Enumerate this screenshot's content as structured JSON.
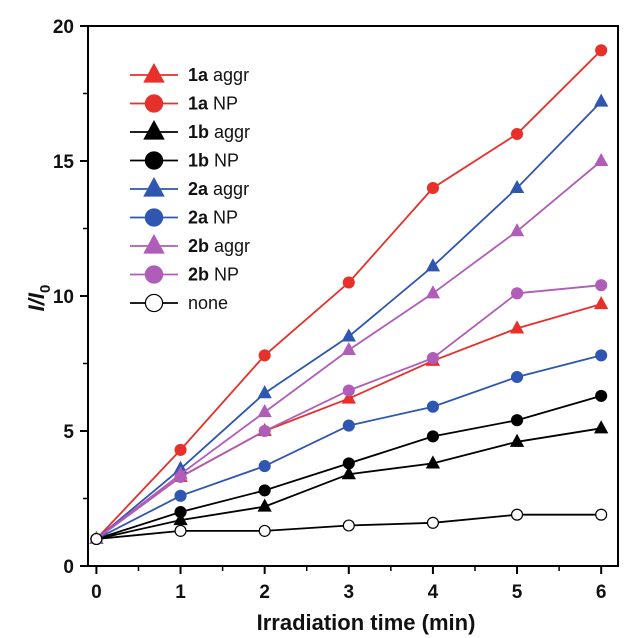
{
  "chart_data": {
    "type": "line",
    "xlabel": "Irradiation time (min)",
    "ylabel": {
      "main": "I/I",
      "sub": "0"
    },
    "x": [
      0,
      1,
      2,
      3,
      4,
      5,
      6
    ],
    "xlim": [
      -0.1,
      6.2
    ],
    "ylim": [
      0,
      20
    ],
    "xticks": [
      "0",
      "1",
      "2",
      "3",
      "4",
      "5",
      "6"
    ],
    "yticks": [
      "0",
      "5",
      "10",
      "15",
      "20"
    ],
    "grid": false,
    "legend_position": "top-left",
    "series": [
      {
        "name": "1a aggr",
        "compound": "1a",
        "form": "aggr",
        "color": "#e8302a",
        "marker": "triangle",
        "filled": true,
        "values": [
          1.0,
          3.3,
          5.0,
          6.2,
          7.6,
          8.8,
          9.7
        ]
      },
      {
        "name": "1a NP",
        "compound": "1a",
        "form": "NP",
        "color": "#e8302a",
        "marker": "circle",
        "filled": true,
        "values": [
          1.0,
          4.3,
          7.8,
          10.5,
          14.0,
          16.0,
          19.1
        ]
      },
      {
        "name": "1b aggr",
        "compound": "1b",
        "form": "aggr",
        "color": "#000000",
        "marker": "triangle",
        "filled": true,
        "values": [
          1.0,
          1.7,
          2.2,
          3.4,
          3.8,
          4.6,
          5.1
        ]
      },
      {
        "name": "1b NP",
        "compound": "1b",
        "form": "NP",
        "color": "#000000",
        "marker": "circle",
        "filled": true,
        "values": [
          1.0,
          2.0,
          2.8,
          3.8,
          4.8,
          5.4,
          6.3
        ]
      },
      {
        "name": "2a aggr",
        "compound": "2a",
        "form": "aggr",
        "color": "#2f56b0",
        "marker": "triangle",
        "filled": true,
        "values": [
          1.0,
          3.6,
          6.4,
          8.5,
          11.1,
          14.0,
          17.2
        ]
      },
      {
        "name": "2a NP",
        "compound": "2a",
        "form": "NP",
        "color": "#2f56b0",
        "marker": "circle",
        "filled": true,
        "values": [
          1.0,
          2.6,
          3.7,
          5.2,
          5.9,
          7.0,
          7.8
        ]
      },
      {
        "name": "2b aggr",
        "compound": "2b",
        "form": "aggr",
        "color": "#b05cb8",
        "marker": "triangle",
        "filled": true,
        "values": [
          1.0,
          3.4,
          5.7,
          8.0,
          10.1,
          12.4,
          15.0
        ]
      },
      {
        "name": "2b NP",
        "compound": "2b",
        "form": "NP",
        "color": "#b05cb8",
        "marker": "circle",
        "filled": true,
        "values": [
          1.0,
          3.3,
          5.0,
          6.5,
          7.7,
          10.1,
          10.4
        ]
      },
      {
        "name": "none",
        "compound": "",
        "form": "none",
        "color": "#000000",
        "marker": "circle",
        "filled": false,
        "values": [
          1.0,
          1.3,
          1.3,
          1.5,
          1.6,
          1.9,
          1.9
        ]
      }
    ]
  }
}
